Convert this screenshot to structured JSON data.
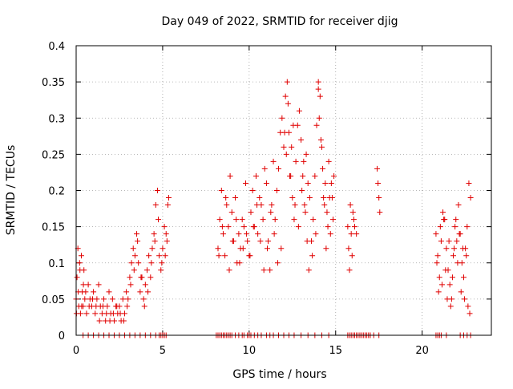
{
  "chart_data": {
    "type": "scatter",
    "title": "Day 049 of 2022, SRMTID for receiver djig",
    "xlabel": "GPS time / hours",
    "ylabel": "SRMTID / TECUs",
    "xlim": [
      0,
      24
    ],
    "ylim": [
      0,
      0.4
    ],
    "x_ticks": [
      0,
      5,
      10,
      15,
      20
    ],
    "x_tick_labels": [
      "0",
      "5",
      "10",
      "15",
      "20"
    ],
    "y_ticks": [
      0,
      0.05,
      0.1,
      0.15,
      0.2,
      0.25,
      0.3,
      0.35,
      0.4
    ],
    "y_tick_labels": [
      "0",
      "0.05",
      "0.1",
      "0.15",
      "0.2",
      "0.25",
      "0.3",
      "0.35",
      "0.4"
    ],
    "grid": true,
    "legend": "none",
    "marker": "plus",
    "color": "#e00000",
    "series": [
      {
        "x": [
          0.0,
          0.05,
          0.1,
          0.15,
          0.2,
          0.25,
          0.3,
          0.35,
          0.4,
          0.45,
          0.5,
          0.6,
          0.7,
          0.8,
          0.9,
          1.0,
          1.1,
          1.2,
          1.3,
          1.4,
          1.5,
          1.6,
          1.7,
          1.8,
          1.9,
          2.0,
          2.1,
          2.2,
          2.3,
          2.4,
          2.5,
          2.6,
          2.7,
          2.8,
          2.9,
          3.0,
          3.1,
          3.2,
          3.3,
          3.4,
          3.5,
          3.6,
          3.7,
          3.8,
          3.9,
          4.0,
          4.1,
          4.2,
          4.3,
          4.4,
          4.5,
          4.6,
          4.7,
          4.8,
          4.9,
          5.0,
          5.1,
          5.2,
          5.3,
          5.35,
          0.02,
          0.12,
          0.22,
          0.32,
          0.42,
          0.55,
          0.75,
          0.95,
          1.15,
          1.35,
          1.55,
          1.75,
          1.95,
          2.15,
          2.35,
          2.55,
          2.75,
          2.95,
          3.15,
          3.35,
          3.55,
          3.75,
          3.95,
          4.15,
          4.35,
          4.55,
          4.75,
          4.95,
          5.15,
          5.25,
          8.2,
          8.3,
          8.4,
          8.5,
          8.6,
          8.7,
          8.8,
          8.9,
          9.0,
          9.1,
          9.2,
          9.3,
          9.4,
          9.5,
          9.6,
          9.7,
          9.8,
          9.9,
          10.0,
          10.1,
          10.2,
          10.3,
          10.4,
          10.5,
          10.6,
          10.7,
          10.8,
          10.9,
          11.0,
          11.1,
          11.2,
          11.3,
          11.4,
          11.5,
          11.6,
          11.7,
          11.8,
          11.9,
          12.0,
          12.1,
          12.2,
          12.3,
          12.4,
          12.5,
          12.6,
          12.7,
          12.8,
          12.9,
          13.0,
          13.1,
          13.2,
          13.3,
          13.4,
          13.5,
          13.6,
          13.7,
          13.8,
          13.9,
          14.0,
          14.1,
          14.2,
          14.3,
          14.4,
          14.5,
          14.6,
          14.7,
          14.8,
          14.9,
          8.25,
          8.45,
          8.65,
          8.85,
          9.05,
          9.25,
          9.45,
          9.65,
          9.85,
          10.05,
          10.25,
          10.45,
          10.65,
          10.85,
          11.05,
          11.25,
          11.45,
          11.65,
          11.85,
          12.05,
          12.15,
          12.25,
          12.35,
          12.45,
          12.55,
          12.65,
          12.85,
          13.05,
          13.15,
          13.25,
          13.35,
          13.45,
          13.65,
          13.85,
          14.0,
          14.05,
          14.15,
          14.25,
          14.35,
          14.45,
          14.55,
          14.65,
          14.75,
          14.85,
          15.7,
          15.75,
          15.8,
          15.85,
          15.9,
          15.95,
          16.0,
          16.05,
          16.1,
          16.2,
          17.4,
          17.45,
          17.5,
          17.55,
          20.8,
          20.9,
          21.0,
          21.1,
          21.2,
          21.3,
          21.4,
          21.5,
          21.6,
          21.7,
          21.8,
          21.9,
          22.0,
          22.1,
          22.2,
          22.3,
          22.4,
          22.5,
          22.6,
          22.7,
          22.8,
          20.85,
          20.95,
          21.05,
          21.15,
          21.25,
          21.35,
          21.45,
          21.55,
          21.65,
          21.75,
          21.85,
          21.95,
          22.05,
          22.15,
          22.25,
          22.35,
          22.45,
          22.55,
          22.65,
          22.75
        ],
        "y": [
          0.05,
          0.08,
          0.12,
          0.04,
          0.1,
          0.03,
          0.11,
          0.06,
          0.04,
          0.09,
          0.05,
          0.03,
          0.07,
          0.05,
          0.04,
          0.06,
          0.03,
          0.05,
          0.07,
          0.04,
          0.03,
          0.05,
          0.02,
          0.04,
          0.06,
          0.03,
          0.05,
          0.02,
          0.04,
          0.03,
          0.04,
          0.02,
          0.05,
          0.03,
          0.06,
          0.05,
          0.08,
          0.1,
          0.12,
          0.11,
          0.14,
          0.1,
          0.06,
          0.08,
          0.05,
          0.07,
          0.09,
          0.11,
          0.08,
          0.12,
          0.14,
          0.18,
          0.2,
          0.11,
          0.09,
          0.12,
          0.15,
          0.14,
          0.18,
          0.19,
          0.03,
          0.06,
          0.09,
          0.04,
          0.07,
          0.06,
          0.04,
          0.05,
          0.04,
          0.02,
          0.04,
          0.03,
          0.02,
          0.03,
          0.04,
          0.03,
          0.02,
          0.04,
          0.07,
          0.09,
          0.13,
          0.08,
          0.04,
          0.06,
          0.1,
          0.13,
          0.16,
          0.1,
          0.11,
          0.13,
          0.12,
          0.16,
          0.2,
          0.14,
          0.11,
          0.18,
          0.15,
          0.22,
          0.17,
          0.13,
          0.19,
          0.1,
          0.14,
          0.12,
          0.16,
          0.15,
          0.21,
          0.13,
          0.11,
          0.17,
          0.2,
          0.15,
          0.22,
          0.14,
          0.19,
          0.18,
          0.16,
          0.23,
          0.21,
          0.13,
          0.09,
          0.18,
          0.24,
          0.16,
          0.2,
          0.23,
          0.28,
          0.3,
          0.26,
          0.33,
          0.35,
          0.28,
          0.22,
          0.19,
          0.16,
          0.24,
          0.29,
          0.31,
          0.27,
          0.22,
          0.18,
          0.25,
          0.21,
          0.19,
          0.13,
          0.16,
          0.22,
          0.29,
          0.35,
          0.33,
          0.26,
          0.19,
          0.21,
          0.17,
          0.24,
          0.14,
          0.19,
          0.22,
          0.11,
          0.15,
          0.19,
          0.09,
          0.13,
          0.16,
          0.1,
          0.12,
          0.14,
          0.11,
          0.15,
          0.18,
          0.13,
          0.09,
          0.12,
          0.17,
          0.14,
          0.1,
          0.12,
          0.28,
          0.25,
          0.32,
          0.22,
          0.26,
          0.29,
          0.18,
          0.15,
          0.2,
          0.24,
          0.17,
          0.13,
          0.09,
          0.11,
          0.14,
          0.34,
          0.3,
          0.27,
          0.23,
          0.18,
          0.12,
          0.15,
          0.19,
          0.21,
          0.16,
          0.15,
          0.12,
          0.09,
          0.18,
          0.14,
          0.11,
          0.17,
          0.16,
          0.15,
          0.14,
          0.23,
          0.21,
          0.19,
          0.17,
          0.14,
          0.11,
          0.08,
          0.13,
          0.17,
          0.16,
          0.12,
          0.09,
          0.07,
          0.05,
          0.11,
          0.15,
          0.13,
          0.18,
          0.14,
          0.1,
          0.08,
          0.12,
          0.15,
          0.21,
          0.19,
          0.1,
          0.06,
          0.15,
          0.07,
          0.16,
          0.09,
          0.05,
          0.13,
          0.04,
          0.08,
          0.12,
          0.16,
          0.1,
          0.14,
          0.06,
          0.12,
          0.05,
          0.11,
          0.04,
          0.03
        ]
      },
      {
        "x": [
          0.4,
          0.7,
          1.0,
          1.3,
          1.6,
          1.9,
          2.2,
          2.5,
          2.8,
          3.1,
          3.4,
          3.7,
          4.0,
          4.3,
          4.6,
          4.8,
          4.9,
          5.0,
          5.1,
          5.2,
          8.1,
          8.2,
          8.3,
          8.4,
          8.5,
          8.6,
          8.7,
          8.8,
          8.9,
          9.0,
          9.2,
          9.4,
          9.6,
          9.7,
          9.9,
          10.0,
          10.1,
          10.3,
          10.5,
          10.7,
          11.0,
          11.2,
          11.4,
          11.7,
          12.0,
          12.3,
          12.6,
          13.0,
          13.4,
          13.8,
          14.2,
          14.6,
          15.7,
          15.8,
          15.9,
          16.0,
          16.1,
          16.2,
          16.3,
          16.4,
          16.5,
          16.6,
          16.7,
          16.8,
          16.9,
          17.0,
          17.2,
          17.5,
          20.8,
          20.9,
          21.0,
          21.1,
          21.4,
          22.2,
          22.4,
          22.6,
          22.8
        ],
        "y": [
          0,
          0,
          0,
          0,
          0,
          0,
          0,
          0,
          0,
          0,
          0,
          0,
          0,
          0,
          0,
          0,
          0,
          0,
          0,
          0,
          0,
          0,
          0,
          0,
          0,
          0,
          0,
          0,
          0,
          0,
          0,
          0,
          0,
          0,
          0,
          0,
          0,
          0,
          0,
          0,
          0,
          0,
          0,
          0,
          0,
          0,
          0,
          0,
          0,
          0,
          0,
          0,
          0,
          0,
          0,
          0,
          0,
          0,
          0,
          0,
          0,
          0,
          0,
          0,
          0,
          0,
          0,
          0,
          0,
          0,
          0,
          0,
          0,
          0,
          0,
          0,
          0
        ]
      }
    ]
  }
}
